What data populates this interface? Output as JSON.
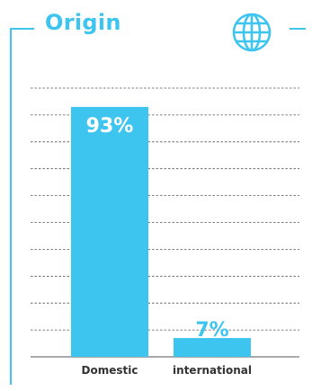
{
  "title": "Origin",
  "icon": "globe-icon",
  "colors": {
    "accent": "#3dc5ef",
    "bar": "#3dc5ef",
    "label_on_bar": "#ffffff",
    "category_text": "#333333",
    "grid": "#555555"
  },
  "chart_data": {
    "type": "bar",
    "categories": [
      "Domestic",
      "international"
    ],
    "values": [
      93,
      7
    ],
    "value_labels": [
      "93%",
      "7%"
    ],
    "ylim": [
      0,
      100
    ],
    "grid": true,
    "title": "",
    "xlabel": "",
    "ylabel": ""
  }
}
